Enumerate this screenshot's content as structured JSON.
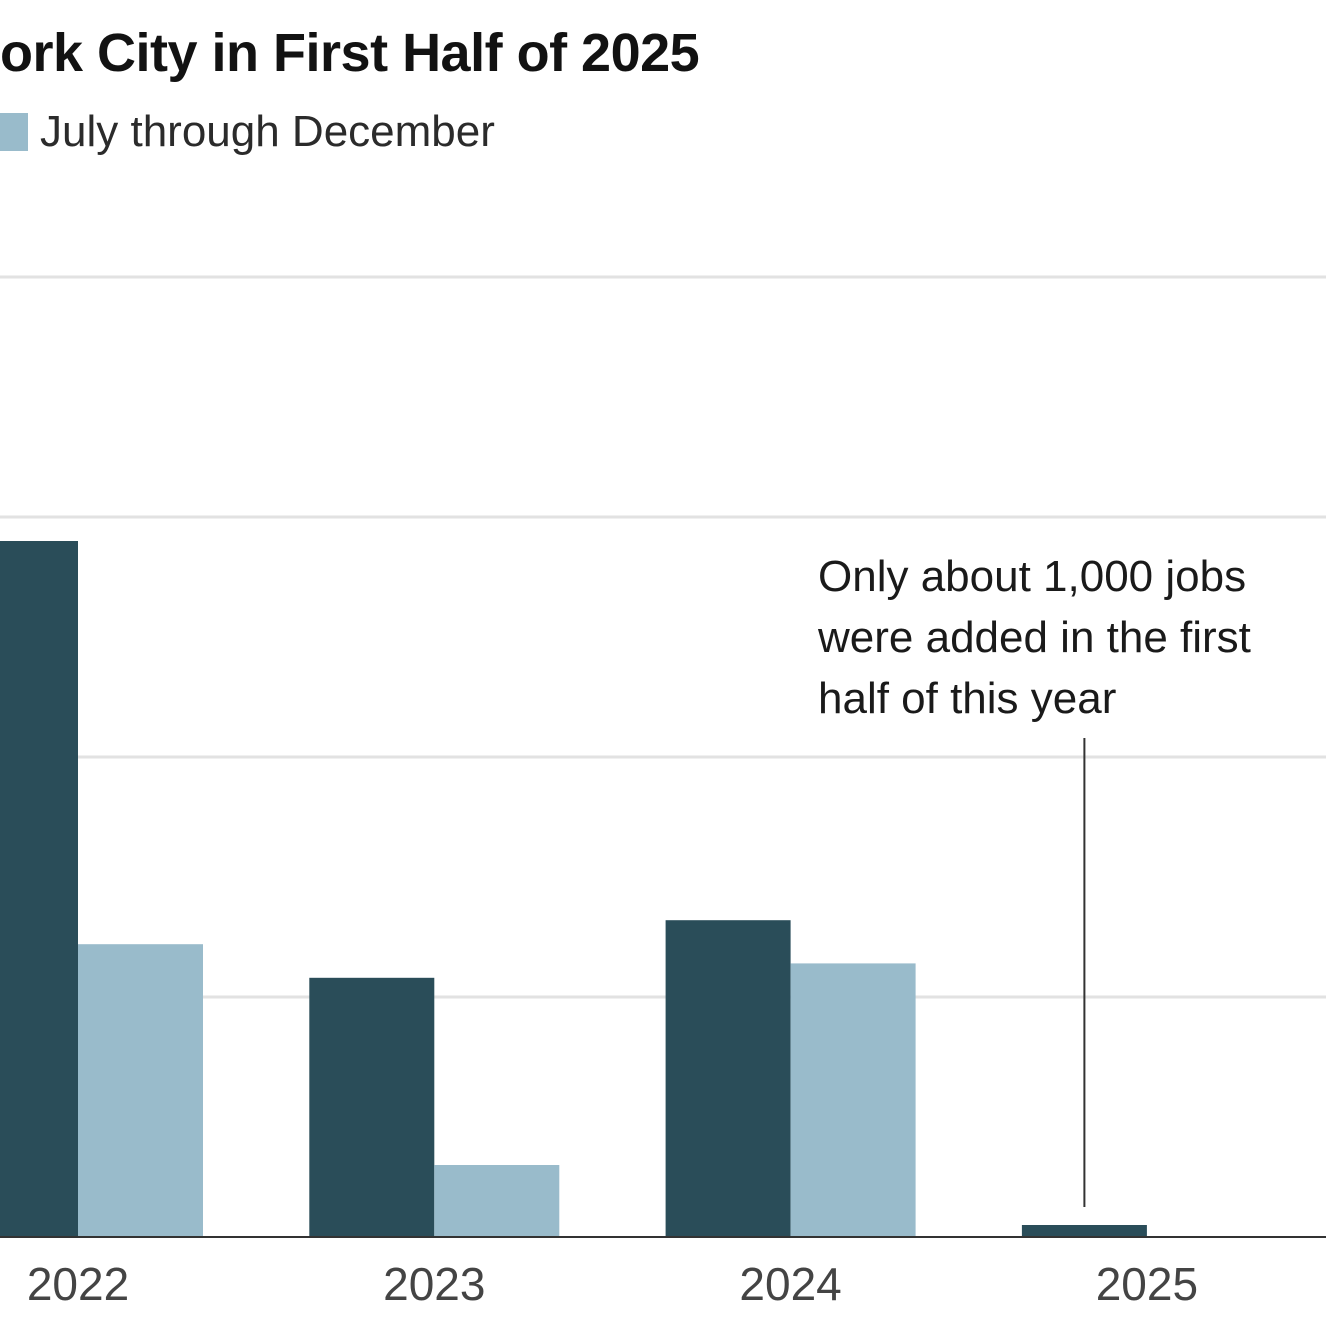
{
  "title": "ork City in First Half of 2025",
  "legend": {
    "items": [
      {
        "label": "July through December",
        "color": "#99bbcb"
      }
    ]
  },
  "annotation": {
    "lines": [
      "Only about 1,000 jobs",
      "were added in the first",
      "half of this year"
    ]
  },
  "chart_data": {
    "type": "bar",
    "categories": [
      "2022",
      "2023",
      "2024",
      "2025"
    ],
    "series": [
      {
        "values": [
          58000,
          21600,
          26400,
          1000
        ],
        "color": "#2a4d59"
      },
      {
        "name": "July through December",
        "values": [
          24400,
          6000,
          22800,
          null
        ],
        "color": "#99bbcb"
      }
    ],
    "ylim": [
      0,
      80000
    ],
    "gridlines": [
      20000,
      40000,
      60000,
      80000
    ],
    "grid": true,
    "xlabel": "",
    "ylabel": "",
    "legend_position": "top-left"
  }
}
